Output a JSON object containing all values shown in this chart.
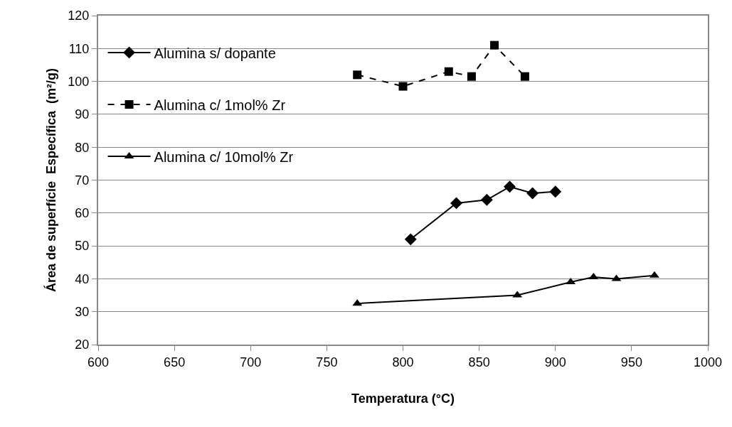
{
  "chart_data": {
    "type": "line",
    "xlabel": "Temperatura (°C)",
    "ylabel": "Área de superfície  Específica  (m²/g)",
    "xlim": [
      600,
      1000
    ],
    "xticks": [
      600,
      650,
      700,
      750,
      800,
      850,
      900,
      950,
      1000
    ],
    "ylim": [
      20,
      120
    ],
    "yticks": [
      20,
      30,
      40,
      50,
      60,
      70,
      80,
      90,
      100,
      110,
      120
    ],
    "grid": "y",
    "legend": "left",
    "series": [
      {
        "name": "Alumina s/ dopante",
        "color": "#000000",
        "marker": "diamond",
        "line_style": "solid",
        "x": [
          805,
          835,
          855,
          870,
          885,
          900
        ],
        "values": [
          52,
          63,
          64,
          68,
          66,
          66.5
        ]
      },
      {
        "name": "Alumina c/ 1mol% Zr",
        "color": "#000000",
        "marker": "square",
        "line_style": "dashed",
        "x": [
          770,
          800,
          830,
          845,
          860,
          880
        ],
        "values": [
          102,
          98.5,
          103,
          101.5,
          111,
          101.5
        ]
      },
      {
        "name": "Alumina c/ 10mol% Zr",
        "color": "#000000",
        "marker": "triangle",
        "line_style": "solid",
        "x": [
          770,
          875,
          910,
          925,
          940,
          965
        ],
        "values": [
          32.5,
          35,
          39,
          40.5,
          40,
          41
        ]
      }
    ]
  }
}
